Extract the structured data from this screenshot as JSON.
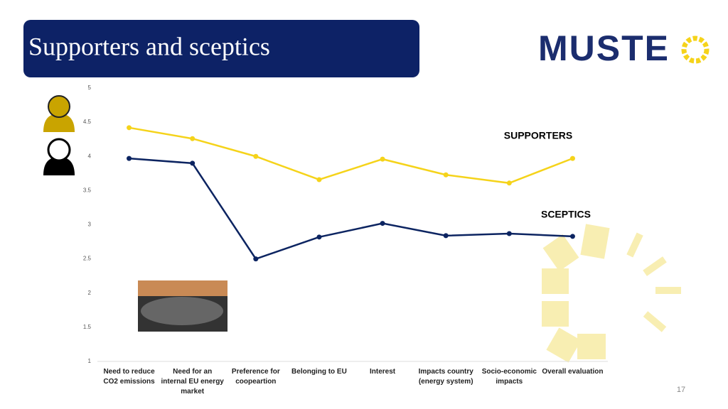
{
  "title": "Supporters and sceptics",
  "logo_text": "MUSTE",
  "page_number": "17",
  "chart_data": {
    "type": "line",
    "categories": [
      "Need to reduce CO2 emissions",
      "Need for an internal EU energy market",
      "Preference for coopeartion",
      "Belonging to EU",
      "Interest",
      "Impacts country (energy system)",
      "Socio-economic impacts",
      "Overall evaluation"
    ],
    "series": [
      {
        "name": "SUPPORTERS",
        "color": "#f5d31a",
        "values": [
          4.42,
          4.26,
          4.0,
          3.66,
          3.96,
          3.73,
          3.61,
          3.97
        ]
      },
      {
        "name": "SCEPTICS",
        "color": "#0c2461",
        "values": [
          3.97,
          3.9,
          2.5,
          2.82,
          3.02,
          2.84,
          2.87,
          2.83
        ]
      }
    ],
    "ylim": [
      1,
      5
    ],
    "yticks": [
      1,
      1.5,
      2,
      2.5,
      3,
      3.5,
      4,
      4.5,
      5
    ],
    "grid": false
  }
}
